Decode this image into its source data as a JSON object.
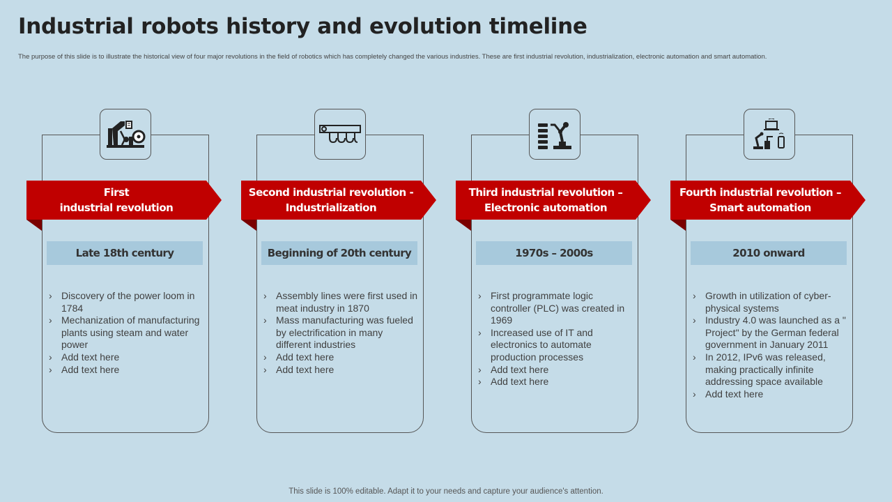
{
  "header": {
    "title": "Industrial robots history and evolution timeline",
    "subtitle": "The purpose of this slide is to illustrate the historical view of four major revolutions in the field of robotics which has completely changed the various industries. These are first industrial revolution, industrialization, electronic automation and smart automation."
  },
  "columns": [
    {
      "icon": "factory-machine-icon",
      "title_line1": "First",
      "title_line2": "industrial revolution",
      "period": "Late 18th century",
      "bullets": [
        "Discovery of the power loom in 1784",
        "Mechanization of manufacturing plants using steam and water power",
        "Add text here",
        "Add text here"
      ]
    },
    {
      "icon": "assembly-line-icon",
      "title_line1": "Second industrial revolution -",
      "title_line2": "Industrialization",
      "period": "Beginning of 20th century",
      "bullets": [
        "Assembly lines were first used in meat industry in 1870",
        "Mass manufacturing was fueled by electrification in many different industries",
        "Add text here",
        "Add text here"
      ]
    },
    {
      "icon": "robot-arm-icon",
      "title_line1": "Third industrial revolution –",
      "title_line2": "Electronic automation",
      "period": "1970s – 2000s",
      "bullets": [
        "First programmate logic controller (PLC) was created in 1969",
        "Increased use of IT and electronics to automate production processes",
        "Add text here",
        "Add text here"
      ]
    },
    {
      "icon": "smart-automation-icon",
      "title_line1": "Fourth industrial revolution –",
      "title_line2": "Smart automation",
      "period": "2010 onward",
      "bullets": [
        "Growth in utilization of cyber-physical systems",
        "Industry 4.0 was launched as a \" Project\" by the German federal government in January 2011",
        "In 2012, IPv6 was released, making practically infinite addressing space available",
        "Add text here"
      ]
    }
  ],
  "footer": {
    "text": "This slide is 100% editable. Adapt it to your needs and capture your audience's attention."
  },
  "colors": {
    "background": "#c5dce8",
    "banner": "#c00000",
    "period_box": "#a7c9dc"
  }
}
